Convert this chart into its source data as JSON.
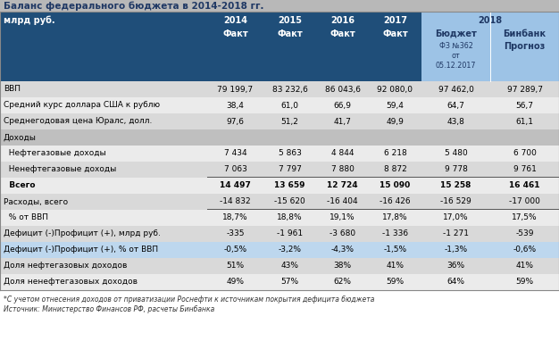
{
  "title": "Баланс федерального бюджета в 2014-2018 гг.",
  "rows": [
    {
      "label": "ВВП",
      "values": [
        "79 199,7",
        "83 232,6",
        "86 043,6",
        "92 080,0",
        "97 462,0",
        "97 289,7"
      ],
      "bold": false,
      "highlight": false,
      "indent": false
    },
    {
      "label": "Средний курс доллара США к рублю",
      "values": [
        "38,4",
        "61,0",
        "66,9",
        "59,4",
        "64,7",
        "56,7"
      ],
      "bold": false,
      "highlight": false,
      "indent": false
    },
    {
      "label": "Среднегодовая цена Юралс, долл.",
      "values": [
        "97,6",
        "51,2",
        "41,7",
        "49,9",
        "43,8",
        "61,1"
      ],
      "bold": false,
      "highlight": false,
      "indent": false
    },
    {
      "label": "Доходы",
      "values": [
        "",
        "",
        "",
        "",
        "",
        ""
      ],
      "bold": false,
      "highlight": false,
      "indent": false,
      "section": true
    },
    {
      "label": "  Нефтегазовые доходы",
      "values": [
        "7 434",
        "5 863",
        "4 844",
        "6 218",
        "5 480",
        "6 700"
      ],
      "bold": false,
      "highlight": false,
      "indent": true
    },
    {
      "label": "  Ненефтегазовые доходы",
      "values": [
        "7 063",
        "7 797",
        "7 880",
        "8 872",
        "9 778",
        "9 761"
      ],
      "bold": false,
      "highlight": false,
      "indent": true,
      "underline": true
    },
    {
      "label": "  Всего",
      "values": [
        "14 497",
        "13 659",
        "12 724",
        "15 090",
        "15 258",
        "16 461"
      ],
      "bold": true,
      "highlight": false,
      "indent": true
    },
    {
      "label": "Расходы, всего",
      "values": [
        "-14 832",
        "-15 620",
        "-16 404",
        "-16 426",
        "-16 529",
        "-17 000"
      ],
      "bold": false,
      "highlight": false,
      "indent": false,
      "underline": true
    },
    {
      "label": "  % от ВВП",
      "values": [
        "18,7%",
        "18,8%",
        "19,1%",
        "17,8%",
        "17,0%",
        "17,5%"
      ],
      "bold": false,
      "highlight": false,
      "indent": true
    },
    {
      "label": "Дефицит (-)Профицит (+), млрд руб.",
      "values": [
        "-335",
        "-1 961",
        "-3 680",
        "-1 336",
        "-1 271",
        "-539"
      ],
      "bold": false,
      "highlight": false,
      "indent": false
    },
    {
      "label": "Дефицит (-)Профицит (+), % от ВВП",
      "values": [
        "-0,5%",
        "-3,2%",
        "-4,3%",
        "-1,5%",
        "-1,3%",
        "-0,6%"
      ],
      "bold": false,
      "highlight": true,
      "indent": false
    },
    {
      "label": "Доля нефтегазовых доходов",
      "values": [
        "51%",
        "43%",
        "38%",
        "41%",
        "36%",
        "41%"
      ],
      "bold": false,
      "highlight": false,
      "indent": false
    },
    {
      "label": "Доля ненефтегазовых доходов",
      "values": [
        "49%",
        "57%",
        "62%",
        "59%",
        "64%",
        "59%"
      ],
      "bold": false,
      "highlight": false,
      "indent": false
    }
  ],
  "footnote1": "*С учетом отнесения доходов от приватизации Роснефти к источникам покрытия дефицита бюджета",
  "footnote2": "Источник: Министерство Финансов РФ, расчеты Бинбанка",
  "title_bg": "#B8B8B8",
  "col_header_bg": "#1F4E79",
  "col_header_fg": "#FFFFFF",
  "col_2018_bg": "#9DC3E6",
  "col_2018_fg": "#1F3864",
  "highlight_bg": "#BDD7EE",
  "row_bg_alt1": "#D9D9D9",
  "row_bg_alt2": "#EBEBEB",
  "section_bg": "#BFBFBF",
  "title_color": "#1F3864",
  "body_text_color": "#000000"
}
